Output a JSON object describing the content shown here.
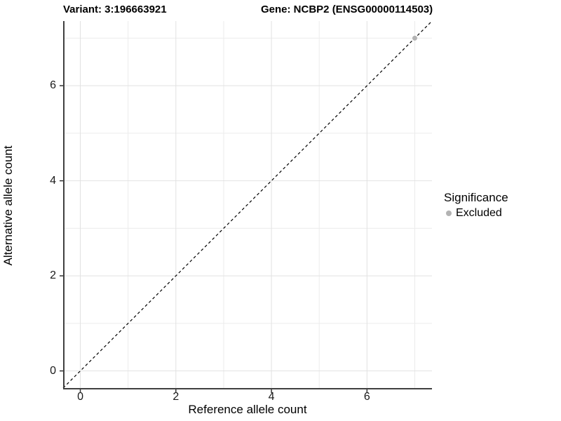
{
  "figure": {
    "title_variant": "Variant: 3:196663921",
    "title_gene": "Gene: NCBP2 (ENSG00000114503)"
  },
  "chart_data": {
    "type": "scatter",
    "title_left": "Variant: 3:196663921",
    "title_right": "Gene: NCBP2 (ENSG00000114503)",
    "xlabel": "Reference allele count",
    "ylabel": "Alternative allele count",
    "xlim": [
      -0.36,
      7.36
    ],
    "ylim": [
      -0.36,
      7.36
    ],
    "xticks": [
      0,
      2,
      4,
      6
    ],
    "yticks": [
      0,
      2,
      4,
      6
    ],
    "minor_xticks": [
      1,
      3,
      5,
      7
    ],
    "minor_yticks": [
      1,
      3,
      5,
      7
    ],
    "grid": "major-and-minor, light gray on white",
    "reference_line": {
      "kind": "identity y=x",
      "style": "dashed",
      "color": "#000000"
    },
    "series": [
      {
        "name": "Excluded",
        "color": "#b3b3b3",
        "points": [
          {
            "x": 7,
            "y": 7
          }
        ]
      }
    ],
    "legend": {
      "position": "right",
      "title": "Significance",
      "entries": [
        {
          "label": "Excluded",
          "color": "#b3b3b3"
        }
      ]
    },
    "colors": {
      "axis_line": "#404040",
      "tick_mark": "#333333",
      "tick_label": "#1a1a1a",
      "grid_major": "#e2e2e2",
      "grid_minor": "#ececec",
      "background": "#ffffff"
    }
  }
}
